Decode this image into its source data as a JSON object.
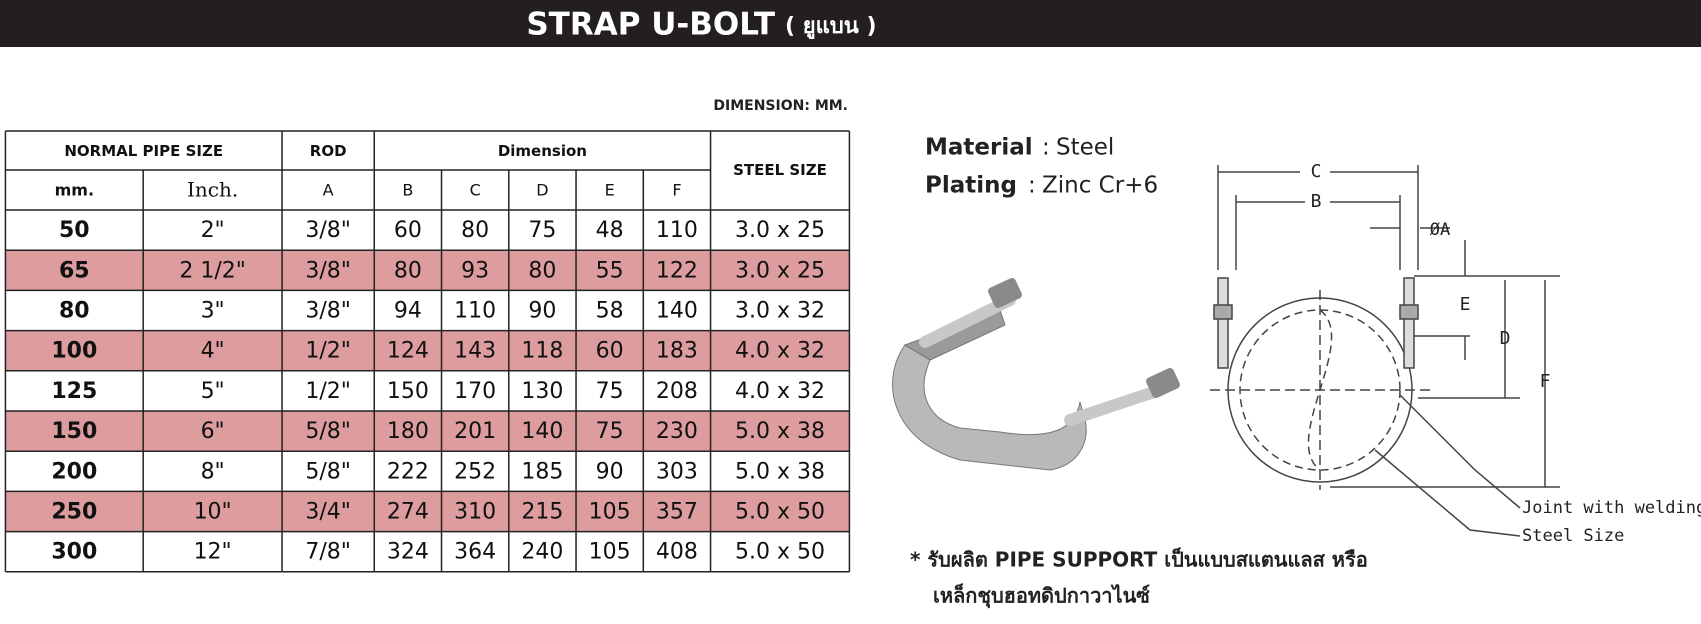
{
  "header": {
    "title": "STRAP U-BOLT",
    "subtitle": "( ยูแบน )"
  },
  "table": {
    "unit_note": "DIMENSION: MM.",
    "group_headers": [
      "NORMAL PIPE SIZE",
      "ROD",
      "Dimension",
      "STEEL SIZE"
    ],
    "sub_headers": [
      "mm.",
      "Inch.",
      "A",
      "B",
      "C",
      "D",
      "E",
      "F"
    ],
    "rows": [
      [
        50,
        "2\"",
        "3/8\"",
        60,
        80,
        75,
        48,
        110,
        "3.0 x 25"
      ],
      [
        65,
        "2 1/2\"",
        "3/8\"",
        80,
        93,
        80,
        55,
        122,
        "3.0 x 25"
      ],
      [
        80,
        "3\"",
        "3/8\"",
        94,
        110,
        90,
        58,
        140,
        "3.0 x 32"
      ],
      [
        100,
        "4\"",
        "1/2\"",
        124,
        143,
        118,
        60,
        183,
        "4.0 x 32"
      ],
      [
        125,
        "5\"",
        "1/2\"",
        150,
        170,
        130,
        75,
        208,
        "4.0 x 32"
      ],
      [
        150,
        "6\"",
        "5/8\"",
        180,
        201,
        140,
        75,
        230,
        "5.0 x 38"
      ],
      [
        200,
        "8\"",
        "5/8\"",
        222,
        252,
        185,
        90,
        303,
        "5.0 x 38"
      ],
      [
        250,
        "10\"",
        "3/4\"",
        274,
        310,
        215,
        105,
        357,
        "5.0 x 50"
      ],
      [
        300,
        "12\"",
        "7/8\"",
        324,
        364,
        240,
        105,
        408,
        "5.0 x 50"
      ]
    ]
  },
  "specs": [
    {
      "label": "Material",
      "separator": ":",
      "value": "Steel"
    },
    {
      "label": "Plating",
      "separator": ":",
      "value": "Zinc Cr+6"
    }
  ],
  "diagram": {
    "labels": [
      "C",
      "B",
      "ØA",
      "E",
      "D",
      "F",
      "Joint with welding",
      "Steel Size"
    ]
  },
  "note": {
    "lines": [
      "* รับผลิต PIPE SUPPORT เป็นแบบสแตนแลส หรือ",
      "เหล็กชุบฮอทดิปกาวาไนซ์"
    ]
  }
}
